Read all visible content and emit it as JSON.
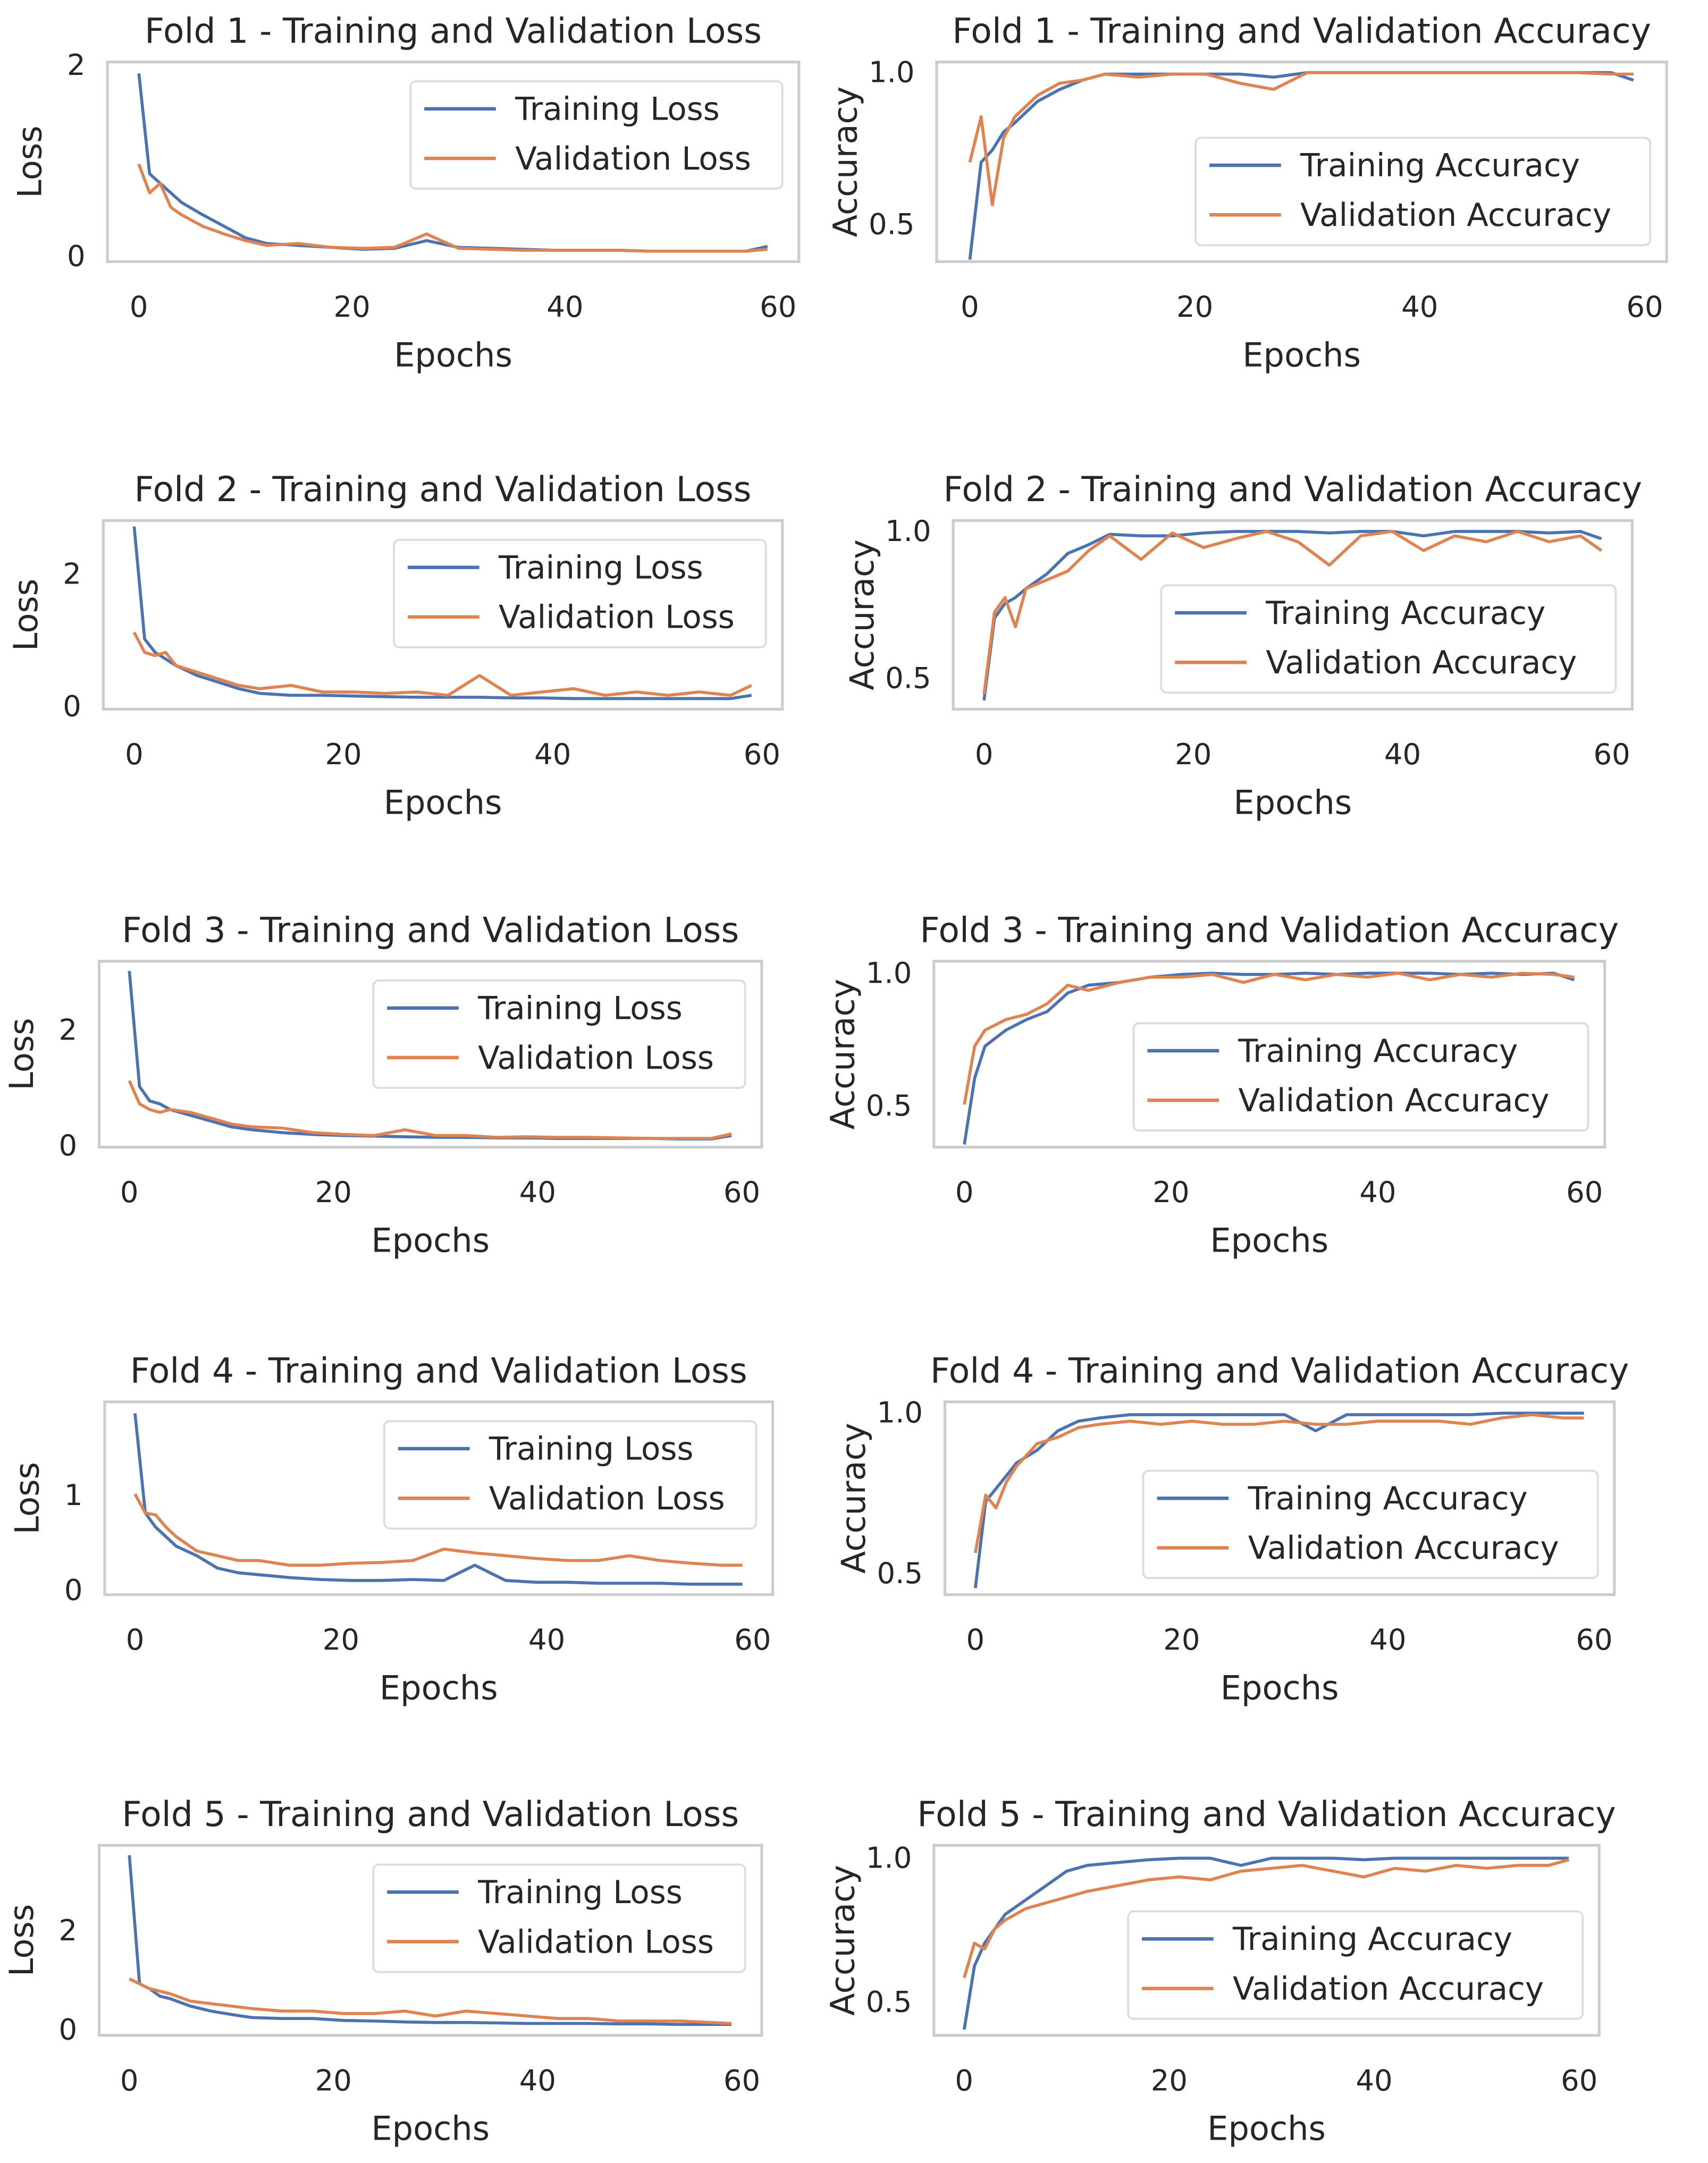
{
  "colors": {
    "training": "#4c72b0",
    "validation": "#dd8452"
  },
  "chart_data": [
    {
      "type": "line",
      "title": "Fold 1 - Training and Validation Loss",
      "xlabel": "Epochs",
      "ylabel": "Loss",
      "xlim": [
        -2.95,
        61.95
      ],
      "ylim": [
        -0.07,
        2.02
      ],
      "xticks": [
        0,
        20,
        40,
        60
      ],
      "yticks": [
        0,
        2
      ],
      "ytick_labels": [
        "0",
        "2"
      ],
      "legend": "upper right",
      "x": [
        0,
        1,
        2,
        3,
        4,
        6,
        8,
        10,
        12,
        15,
        18,
        21,
        24,
        27,
        30,
        33,
        36,
        39,
        42,
        45,
        48,
        51,
        54,
        57,
        59
      ],
      "series": [
        {
          "name": "Training Loss",
          "values": [
            1.9,
            0.85,
            0.75,
            0.65,
            0.55,
            0.42,
            0.3,
            0.18,
            0.12,
            0.1,
            0.08,
            0.06,
            0.07,
            0.15,
            0.08,
            0.07,
            0.06,
            0.05,
            0.05,
            0.05,
            0.04,
            0.04,
            0.04,
            0.04,
            0.09
          ]
        },
        {
          "name": "Validation Loss",
          "values": [
            0.95,
            0.65,
            0.75,
            0.5,
            0.42,
            0.3,
            0.22,
            0.15,
            0.1,
            0.12,
            0.08,
            0.07,
            0.08,
            0.22,
            0.07,
            0.06,
            0.05,
            0.05,
            0.05,
            0.05,
            0.04,
            0.04,
            0.04,
            0.04,
            0.06
          ]
        }
      ]
    },
    {
      "type": "line",
      "title": "Fold 1 - Training and Validation Accuracy",
      "xlabel": "Epochs",
      "ylabel": "Accuracy",
      "xlim": [
        -2.95,
        61.95
      ],
      "ylim": [
        0.373,
        1.03
      ],
      "xticks": [
        0,
        20,
        40,
        60
      ],
      "yticks": [
        0.5,
        1.0
      ],
      "ytick_labels": [
        "0.5",
        "1.0"
      ],
      "legend": "lower right",
      "x": [
        0,
        1,
        2,
        3,
        4,
        6,
        8,
        10,
        12,
        15,
        18,
        21,
        24,
        27,
        30,
        33,
        36,
        39,
        42,
        45,
        48,
        51,
        54,
        57,
        59
      ],
      "series": [
        {
          "name": "Training Accuracy",
          "values": [
            0.38,
            0.7,
            0.74,
            0.8,
            0.83,
            0.9,
            0.94,
            0.97,
            0.99,
            0.99,
            0.99,
            0.99,
            0.99,
            0.98,
            0.995,
            0.995,
            0.995,
            0.995,
            0.995,
            0.995,
            0.995,
            0.995,
            0.995,
            0.995,
            0.97
          ]
        },
        {
          "name": "Validation Accuracy",
          "values": [
            0.7,
            0.85,
            0.56,
            0.78,
            0.85,
            0.92,
            0.96,
            0.97,
            0.99,
            0.98,
            0.99,
            0.99,
            0.96,
            0.94,
            0.995,
            0.995,
            0.995,
            0.995,
            0.995,
            0.995,
            0.995,
            0.995,
            0.995,
            0.99,
            0.99
          ]
        }
      ]
    },
    {
      "type": "line",
      "title": "Fold 2 - Training and Validation Loss",
      "xlabel": "Epochs",
      "ylabel": "Loss",
      "xlim": [
        -2.95,
        61.95
      ],
      "ylim": [
        -0.06,
        2.79
      ],
      "xticks": [
        0,
        20,
        40,
        60
      ],
      "yticks": [
        0,
        2
      ],
      "ytick_labels": [
        "0",
        "2"
      ],
      "legend": "upper right",
      "x": [
        0,
        1,
        2,
        3,
        4,
        6,
        8,
        10,
        12,
        15,
        18,
        21,
        24,
        27,
        30,
        33,
        36,
        39,
        42,
        45,
        48,
        51,
        54,
        57,
        59
      ],
      "series": [
        {
          "name": "Training Loss",
          "values": [
            2.7,
            1.0,
            0.8,
            0.7,
            0.6,
            0.45,
            0.35,
            0.25,
            0.18,
            0.15,
            0.15,
            0.14,
            0.13,
            0.12,
            0.12,
            0.12,
            0.11,
            0.11,
            0.1,
            0.1,
            0.1,
            0.1,
            0.1,
            0.1,
            0.15
          ]
        },
        {
          "name": "Validation Loss",
          "values": [
            1.1,
            0.8,
            0.75,
            0.8,
            0.6,
            0.5,
            0.4,
            0.3,
            0.25,
            0.3,
            0.2,
            0.2,
            0.18,
            0.2,
            0.15,
            0.45,
            0.15,
            0.2,
            0.25,
            0.15,
            0.2,
            0.15,
            0.2,
            0.15,
            0.3
          ]
        }
      ]
    },
    {
      "type": "line",
      "title": "Fold 2 - Training and Validation Accuracy",
      "xlabel": "Epochs",
      "ylabel": "Accuracy",
      "xlim": [
        -2.95,
        61.95
      ],
      "ylim": [
        0.39,
        1.032
      ],
      "xticks": [
        0,
        20,
        40,
        60
      ],
      "yticks": [
        0.5,
        1.0
      ],
      "ytick_labels": [
        "0.5",
        "1.0"
      ],
      "legend": "lower right",
      "x": [
        0,
        1,
        2,
        3,
        4,
        6,
        8,
        10,
        12,
        15,
        18,
        21,
        24,
        27,
        30,
        33,
        36,
        39,
        42,
        45,
        48,
        51,
        54,
        57,
        59
      ],
      "series": [
        {
          "name": "Training Accuracy",
          "values": [
            0.42,
            0.7,
            0.75,
            0.77,
            0.8,
            0.85,
            0.92,
            0.95,
            0.985,
            0.98,
            0.98,
            0.99,
            0.995,
            0.995,
            0.995,
            0.99,
            0.995,
            0.995,
            0.98,
            0.995,
            0.995,
            0.995,
            0.99,
            0.995,
            0.97
          ]
        },
        {
          "name": "Validation Accuracy",
          "values": [
            0.44,
            0.72,
            0.77,
            0.67,
            0.8,
            0.83,
            0.86,
            0.93,
            0.98,
            0.9,
            0.99,
            0.94,
            0.97,
            0.995,
            0.96,
            0.88,
            0.98,
            0.995,
            0.93,
            0.98,
            0.96,
            0.995,
            0.96,
            0.98,
            0.93
          ]
        }
      ]
    },
    {
      "type": "line",
      "title": "Fold 3 - Training and Validation Loss",
      "xlabel": "Epochs",
      "ylabel": "Loss",
      "xlim": [
        -2.95,
        61.95
      ],
      "ylim": [
        -0.05,
        3.17
      ],
      "xticks": [
        0,
        20,
        40,
        60
      ],
      "yticks": [
        0,
        2
      ],
      "ytick_labels": [
        "0",
        "2"
      ],
      "legend": "upper right",
      "x": [
        0,
        1,
        2,
        3,
        4,
        6,
        8,
        10,
        12,
        15,
        18,
        21,
        24,
        27,
        30,
        33,
        36,
        39,
        42,
        45,
        48,
        51,
        54,
        57,
        59
      ],
      "series": [
        {
          "name": "Training Loss",
          "values": [
            3.0,
            1.0,
            0.75,
            0.7,
            0.6,
            0.5,
            0.4,
            0.3,
            0.25,
            0.2,
            0.17,
            0.15,
            0.14,
            0.13,
            0.12,
            0.12,
            0.11,
            0.11,
            0.1,
            0.1,
            0.1,
            0.1,
            0.09,
            0.09,
            0.15
          ]
        },
        {
          "name": "Validation Loss",
          "values": [
            1.1,
            0.7,
            0.6,
            0.55,
            0.6,
            0.55,
            0.45,
            0.35,
            0.3,
            0.28,
            0.2,
            0.17,
            0.15,
            0.25,
            0.15,
            0.15,
            0.12,
            0.13,
            0.12,
            0.12,
            0.11,
            0.1,
            0.1,
            0.1,
            0.18
          ]
        }
      ]
    },
    {
      "type": "line",
      "title": "Fold 3 - Training and Validation Accuracy",
      "xlabel": "Epochs",
      "ylabel": "Accuracy",
      "xlim": [
        -2.95,
        61.95
      ],
      "ylim": [
        0.34,
        1.04
      ],
      "xticks": [
        0,
        20,
        40,
        60
      ],
      "yticks": [
        0.5,
        1.0
      ],
      "ytick_labels": [
        "0.5",
        "1.0"
      ],
      "legend": "lower right",
      "x": [
        0,
        1,
        2,
        3,
        4,
        6,
        8,
        10,
        12,
        15,
        18,
        21,
        24,
        27,
        30,
        33,
        36,
        39,
        42,
        45,
        48,
        51,
        54,
        57,
        59
      ],
      "series": [
        {
          "name": "Training Accuracy",
          "values": [
            0.35,
            0.6,
            0.72,
            0.75,
            0.78,
            0.82,
            0.85,
            0.92,
            0.95,
            0.96,
            0.98,
            0.99,
            0.995,
            0.99,
            0.99,
            0.995,
            0.99,
            0.995,
            0.995,
            0.995,
            0.99,
            0.995,
            0.99,
            0.995,
            0.97
          ]
        },
        {
          "name": "Validation Accuracy",
          "values": [
            0.5,
            0.72,
            0.78,
            0.8,
            0.82,
            0.84,
            0.88,
            0.95,
            0.93,
            0.96,
            0.98,
            0.98,
            0.99,
            0.96,
            0.99,
            0.97,
            0.99,
            0.98,
            0.995,
            0.97,
            0.99,
            0.98,
            0.995,
            0.99,
            0.98
          ]
        }
      ]
    },
    {
      "type": "line",
      "title": "Fold 4 - Training and Validation Loss",
      "xlabel": "Epochs",
      "ylabel": "Loss",
      "xlim": [
        -2.95,
        61.95
      ],
      "ylim": [
        -0.06,
        1.97
      ],
      "xticks": [
        0,
        20,
        40,
        60
      ],
      "yticks": [
        0,
        1
      ],
      "ytick_labels": [
        "0",
        "1"
      ],
      "legend": "upper right",
      "x": [
        0,
        1,
        2,
        3,
        4,
        6,
        8,
        10,
        12,
        15,
        18,
        21,
        24,
        27,
        30,
        33,
        36,
        39,
        42,
        45,
        48,
        51,
        54,
        57,
        59
      ],
      "series": [
        {
          "name": "Training Loss",
          "values": [
            1.85,
            0.8,
            0.65,
            0.55,
            0.45,
            0.35,
            0.22,
            0.17,
            0.15,
            0.12,
            0.1,
            0.09,
            0.09,
            0.1,
            0.09,
            0.25,
            0.09,
            0.07,
            0.07,
            0.06,
            0.06,
            0.06,
            0.05,
            0.05,
            0.05
          ]
        },
        {
          "name": "Validation Loss",
          "values": [
            1.0,
            0.8,
            0.78,
            0.65,
            0.55,
            0.4,
            0.35,
            0.3,
            0.3,
            0.25,
            0.25,
            0.27,
            0.28,
            0.3,
            0.42,
            0.38,
            0.35,
            0.32,
            0.3,
            0.3,
            0.35,
            0.3,
            0.27,
            0.25,
            0.25
          ]
        }
      ]
    },
    {
      "type": "line",
      "title": "Fold 4 - Training and Validation Accuracy",
      "xlabel": "Epochs",
      "ylabel": "Accuracy",
      "xlim": [
        -2.95,
        61.95
      ],
      "ylim": [
        0.43,
        1.03
      ],
      "xticks": [
        0,
        20,
        40,
        60
      ],
      "yticks": [
        0.5,
        1.0
      ],
      "ytick_labels": [
        "0.5",
        "1.0"
      ],
      "legend": "lower right",
      "x": [
        0,
        1,
        2,
        3,
        4,
        6,
        8,
        10,
        12,
        15,
        18,
        21,
        24,
        27,
        30,
        33,
        36,
        39,
        42,
        45,
        48,
        51,
        54,
        57,
        59
      ],
      "series": [
        {
          "name": "Training Accuracy",
          "values": [
            0.45,
            0.72,
            0.76,
            0.8,
            0.84,
            0.88,
            0.94,
            0.97,
            0.98,
            0.99,
            0.99,
            0.99,
            0.99,
            0.99,
            0.99,
            0.94,
            0.99,
            0.99,
            0.99,
            0.99,
            0.99,
            0.995,
            0.995,
            0.995,
            0.995
          ]
        },
        {
          "name": "Validation Accuracy",
          "values": [
            0.56,
            0.74,
            0.7,
            0.78,
            0.83,
            0.9,
            0.92,
            0.95,
            0.96,
            0.97,
            0.96,
            0.97,
            0.96,
            0.96,
            0.97,
            0.96,
            0.96,
            0.97,
            0.97,
            0.97,
            0.96,
            0.98,
            0.99,
            0.98,
            0.98
          ]
        }
      ]
    },
    {
      "type": "line",
      "title": "Fold 5 - Training and Validation Loss",
      "xlabel": "Epochs",
      "ylabel": "Loss",
      "xlim": [
        -2.95,
        61.95
      ],
      "ylim": [
        -0.14,
        3.7
      ],
      "xticks": [
        0,
        20,
        40,
        60
      ],
      "yticks": [
        0,
        2
      ],
      "ytick_labels": [
        "0",
        "2"
      ],
      "legend": "upper right",
      "x": [
        0,
        1,
        2,
        3,
        4,
        6,
        8,
        10,
        12,
        15,
        18,
        21,
        24,
        27,
        30,
        33,
        36,
        39,
        42,
        45,
        48,
        51,
        54,
        57,
        59
      ],
      "series": [
        {
          "name": "Training Loss",
          "values": [
            3.5,
            0.9,
            0.8,
            0.65,
            0.6,
            0.45,
            0.35,
            0.28,
            0.22,
            0.2,
            0.2,
            0.16,
            0.15,
            0.13,
            0.12,
            0.12,
            0.11,
            0.1,
            0.1,
            0.1,
            0.09,
            0.09,
            0.08,
            0.08,
            0.08
          ]
        },
        {
          "name": "Validation Loss",
          "values": [
            1.0,
            0.9,
            0.8,
            0.75,
            0.7,
            0.55,
            0.5,
            0.45,
            0.4,
            0.35,
            0.35,
            0.3,
            0.3,
            0.35,
            0.25,
            0.35,
            0.3,
            0.25,
            0.2,
            0.2,
            0.15,
            0.15,
            0.15,
            0.12,
            0.1
          ]
        }
      ]
    },
    {
      "type": "line",
      "title": "Fold 5 - Training and Validation Accuracy",
      "xlabel": "Epochs",
      "ylabel": "Accuracy",
      "xlim": [
        -2.95,
        61.95
      ],
      "ylim": [
        0.38,
        1.04
      ],
      "xticks": [
        0,
        20,
        40,
        60
      ],
      "yticks": [
        0.5,
        1.0
      ],
      "ytick_labels": [
        "0.5",
        "1.0"
      ],
      "legend": "lower right",
      "x": [
        0,
        1,
        2,
        3,
        4,
        6,
        8,
        10,
        12,
        15,
        18,
        21,
        24,
        27,
        30,
        33,
        36,
        39,
        42,
        45,
        48,
        51,
        54,
        57,
        59
      ],
      "series": [
        {
          "name": "Training Accuracy",
          "values": [
            0.4,
            0.62,
            0.7,
            0.75,
            0.8,
            0.85,
            0.9,
            0.95,
            0.97,
            0.98,
            0.99,
            0.995,
            0.995,
            0.97,
            0.995,
            0.995,
            0.995,
            0.99,
            0.995,
            0.995,
            0.995,
            0.995,
            0.995,
            0.995,
            0.995
          ]
        },
        {
          "name": "Validation Accuracy",
          "values": [
            0.58,
            0.7,
            0.68,
            0.75,
            0.78,
            0.82,
            0.84,
            0.86,
            0.88,
            0.9,
            0.92,
            0.93,
            0.92,
            0.95,
            0.96,
            0.97,
            0.95,
            0.93,
            0.96,
            0.95,
            0.97,
            0.96,
            0.97,
            0.97,
            0.99
          ]
        }
      ]
    }
  ]
}
